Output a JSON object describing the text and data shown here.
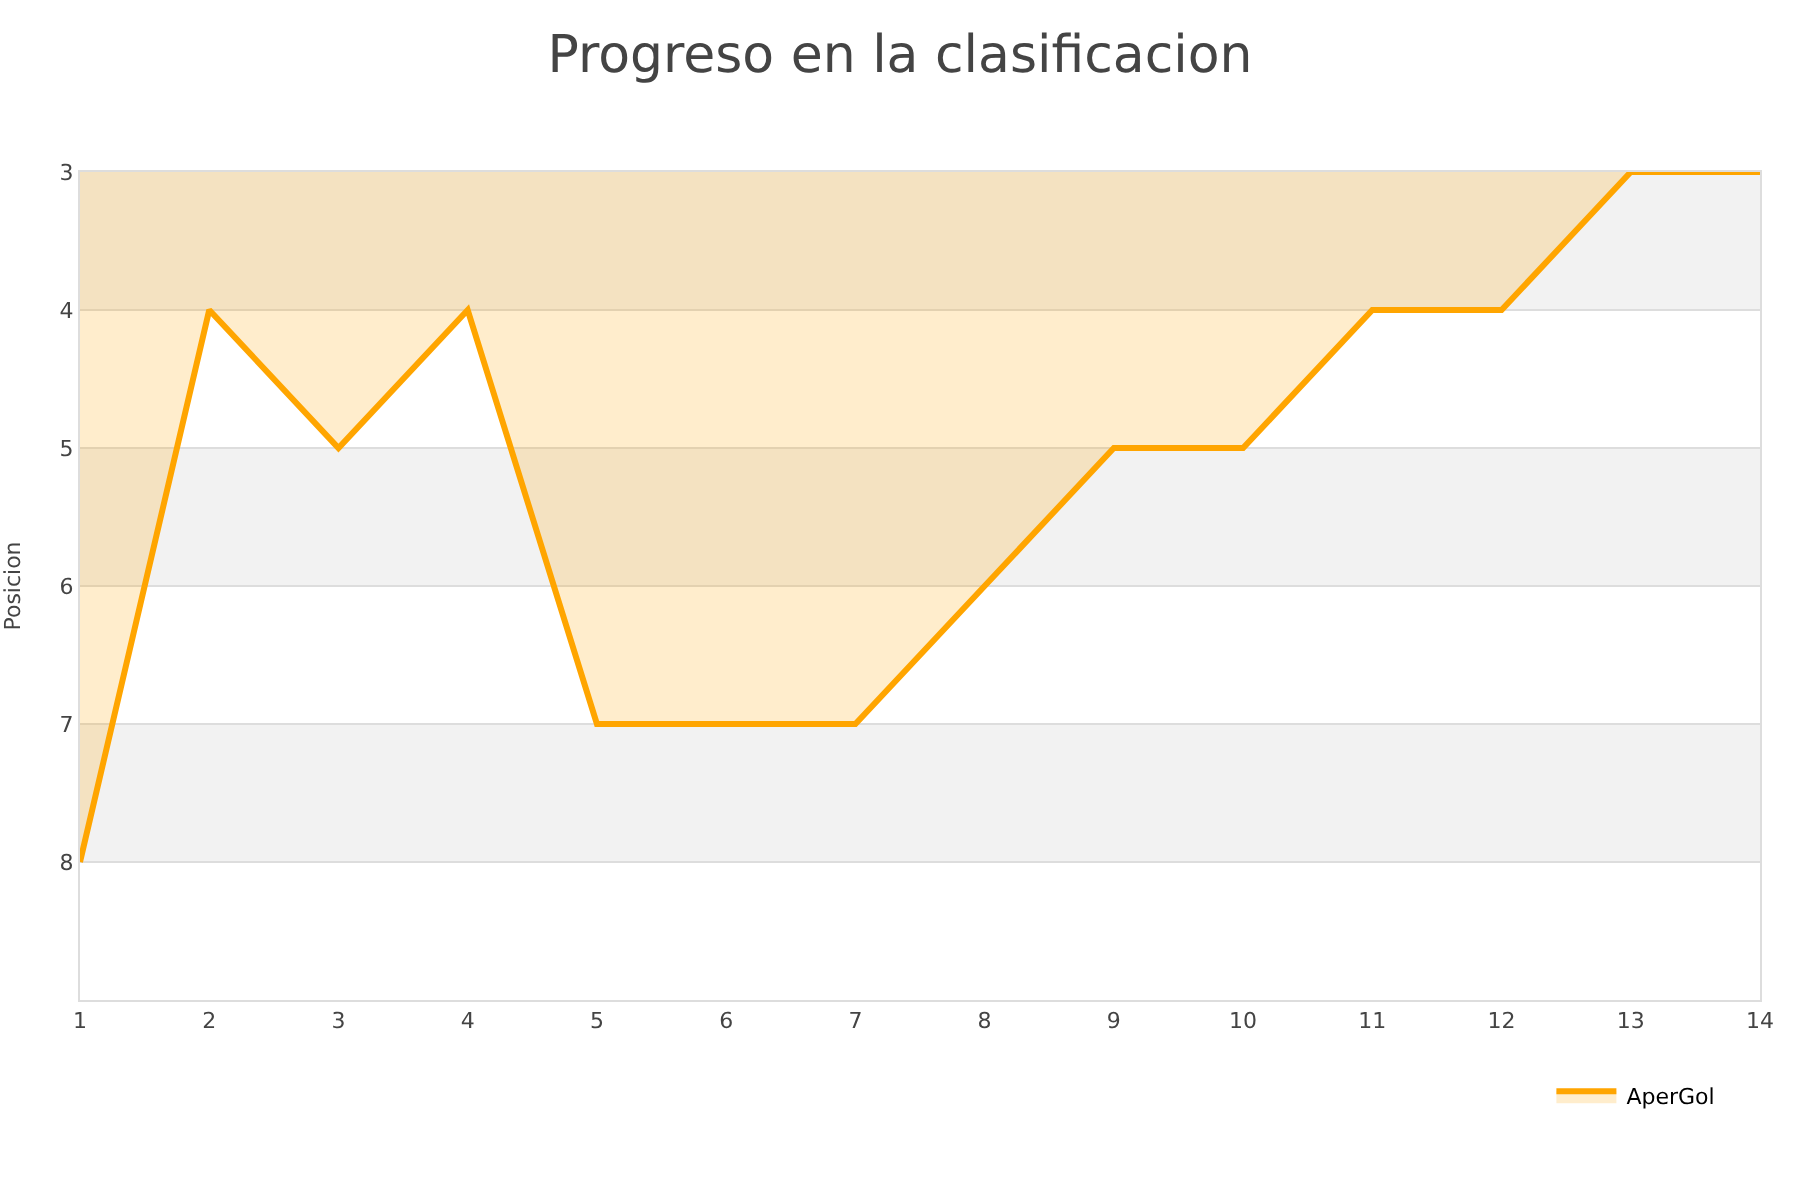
{
  "chart_data": {
    "type": "area",
    "title": "Progreso en la clasificacion",
    "ylabel": "Posicion",
    "x": [
      1,
      2,
      3,
      4,
      5,
      6,
      7,
      8,
      9,
      10,
      11,
      12,
      13,
      14
    ],
    "series": [
      {
        "name": "AperGol",
        "color": "#ffa500",
        "values": [
          8,
          4,
          5,
          4,
          7,
          7,
          7,
          6,
          5,
          5,
          4,
          4,
          3,
          3
        ]
      }
    ],
    "xlim": [
      1,
      14
    ],
    "xticks": [
      1,
      2,
      3,
      4,
      5,
      6,
      7,
      8,
      9,
      10,
      11,
      12,
      13,
      14
    ],
    "ylim": [
      9,
      3
    ],
    "yticks": [
      3,
      4,
      5,
      6,
      7,
      8
    ],
    "bands": [
      {
        "axis": "y",
        "from": 3,
        "to": 4,
        "color": "#f2f2f2"
      },
      {
        "axis": "y",
        "from": 5,
        "to": 6,
        "color": "#f2f2f2"
      },
      {
        "axis": "y",
        "from": 7,
        "to": 8,
        "color": "#f2f2f2"
      }
    ],
    "grid": "y",
    "legend": "bottom right",
    "marker": "none",
    "line_style": "solid"
  }
}
